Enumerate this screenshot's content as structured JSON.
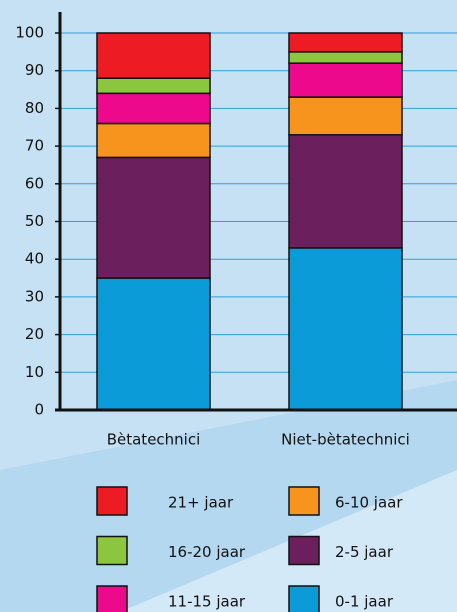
{
  "chart_data": {
    "type": "stacked_bar",
    "categories": [
      "Bètatechnici",
      "Niet-bètatechnici"
    ],
    "series": [
      {
        "name": "0-1 jaar",
        "color": "#0b9bd9",
        "values": [
          35,
          43
        ]
      },
      {
        "name": "2-5 jaar",
        "color": "#6b1f5c",
        "values": [
          32,
          30
        ]
      },
      {
        "name": "6-10 jaar",
        "color": "#f7941d",
        "values": [
          9,
          10
        ]
      },
      {
        "name": "11-15 jaar",
        "color": "#ec098c",
        "values": [
          8,
          9
        ]
      },
      {
        "name": "16-20 jaar",
        "color": "#8cc63f",
        "values": [
          4,
          3
        ]
      },
      {
        "name": "21+ jaar",
        "color": "#ed1c24",
        "values": [
          12,
          5
        ]
      }
    ],
    "ylim": [
      0,
      100
    ],
    "yticks": [
      0,
      10,
      20,
      30,
      40,
      50,
      60,
      70,
      80,
      90,
      100
    ],
    "grid": true
  }
}
